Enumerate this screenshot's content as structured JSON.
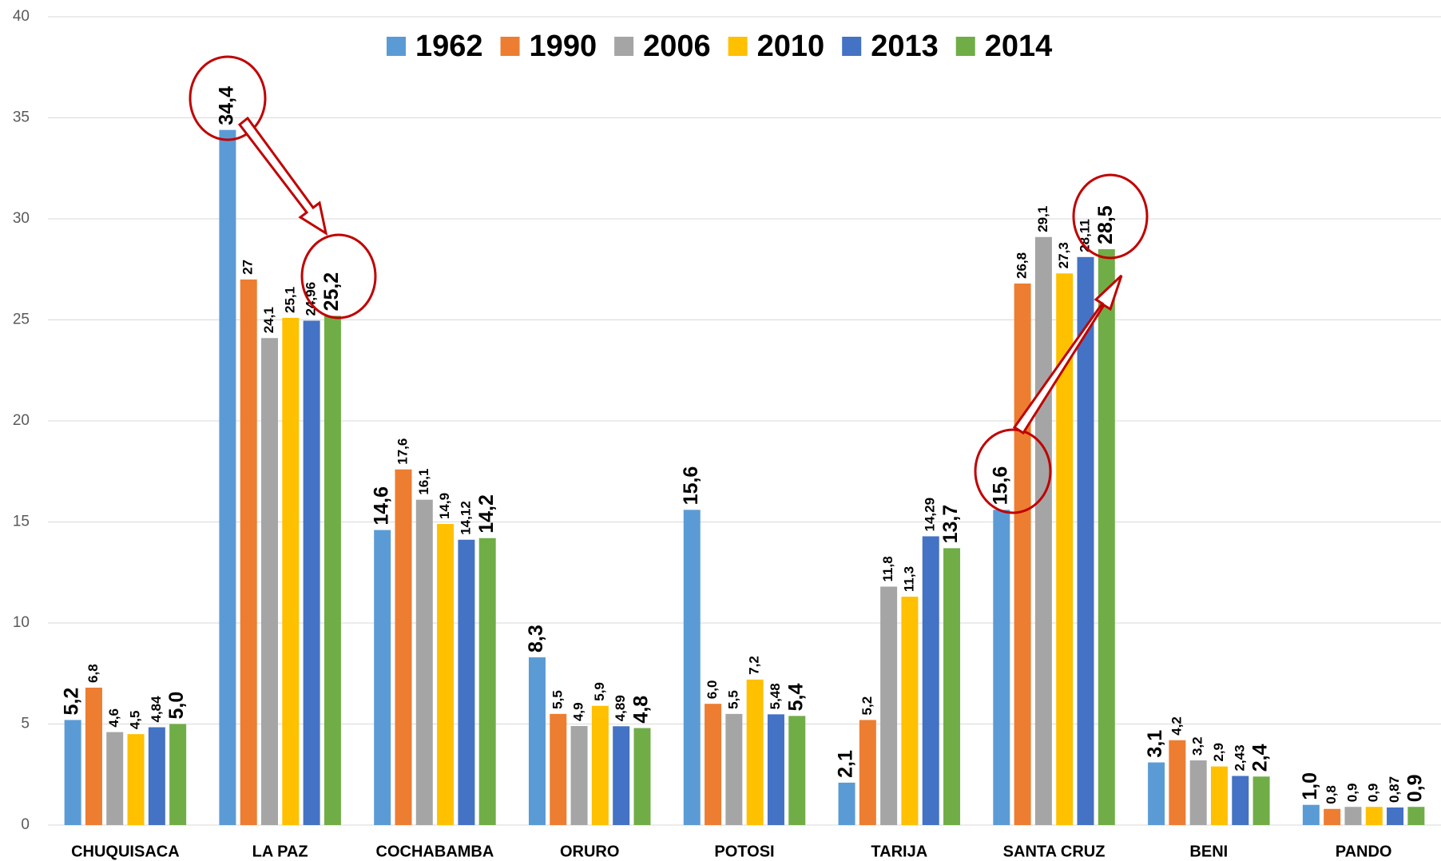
{
  "chart_data": {
    "type": "bar",
    "categories": [
      "CHUQUISACA",
      "LA PAZ",
      "COCHABAMBA",
      "ORURO",
      "POTOSI",
      "TARIJA",
      "SANTA CRUZ",
      "BENI",
      "PANDO"
    ],
    "series": [
      {
        "name": "1962",
        "color": "#5b9bd5",
        "values": [
          5.2,
          34.4,
          14.6,
          8.3,
          15.6,
          2.1,
          15.6,
          3.1,
          1.0
        ],
        "value_labels": [
          "5,2",
          "34,4",
          "14,6",
          "8,3",
          "15,6",
          "2,1",
          "15,6",
          "3,1",
          "1,0"
        ]
      },
      {
        "name": "1990",
        "color": "#ed7d31",
        "values": [
          6.8,
          27,
          17.6,
          5.5,
          6.0,
          5.2,
          26.8,
          4.2,
          0.8
        ],
        "value_labels": [
          "6,8",
          "27",
          "17,6",
          "5,5",
          "6,0",
          "5,2",
          "26,8",
          "4,2",
          "0,8"
        ]
      },
      {
        "name": "2006",
        "color": "#a5a5a5",
        "values": [
          4.6,
          24.1,
          16.1,
          4.9,
          5.5,
          11.8,
          29.1,
          3.2,
          0.9
        ],
        "value_labels": [
          "4,6",
          "24,1",
          "16,1",
          "4,9",
          "5,5",
          "11,8",
          "29,1",
          "3,2",
          "0,9"
        ]
      },
      {
        "name": "2010",
        "color": "#ffc000",
        "values": [
          4.5,
          25.1,
          14.9,
          5.9,
          7.2,
          11.3,
          27.3,
          2.9,
          0.9
        ],
        "value_labels": [
          "4,5",
          "25,1",
          "14,9",
          "5,9",
          "7,2",
          "11,3",
          "27,3",
          "2,9",
          "0,9"
        ]
      },
      {
        "name": "2013",
        "color": "#4472c4",
        "values": [
          4.84,
          24.96,
          14.12,
          4.89,
          5.48,
          14.29,
          28.11,
          2.43,
          0.87
        ],
        "value_labels": [
          "4,84",
          "24,96",
          "14,12",
          "4,89",
          "5,48",
          "14,29",
          "28,11",
          "2,43",
          "0,87"
        ]
      },
      {
        "name": "2014",
        "color": "#70ad47",
        "values": [
          5.0,
          25.2,
          14.2,
          4.8,
          5.4,
          13.7,
          28.5,
          2.4,
          0.9
        ],
        "value_labels": [
          "5,0",
          "25,2",
          "14,2",
          "4,8",
          "5,4",
          "13,7",
          "28,5",
          "2,4",
          "0,9"
        ]
      }
    ],
    "ylim": [
      0,
      40
    ],
    "yticks": [
      0,
      5,
      10,
      15,
      20,
      25,
      30,
      35,
      40
    ],
    "grid": true,
    "legend": "top"
  }
}
